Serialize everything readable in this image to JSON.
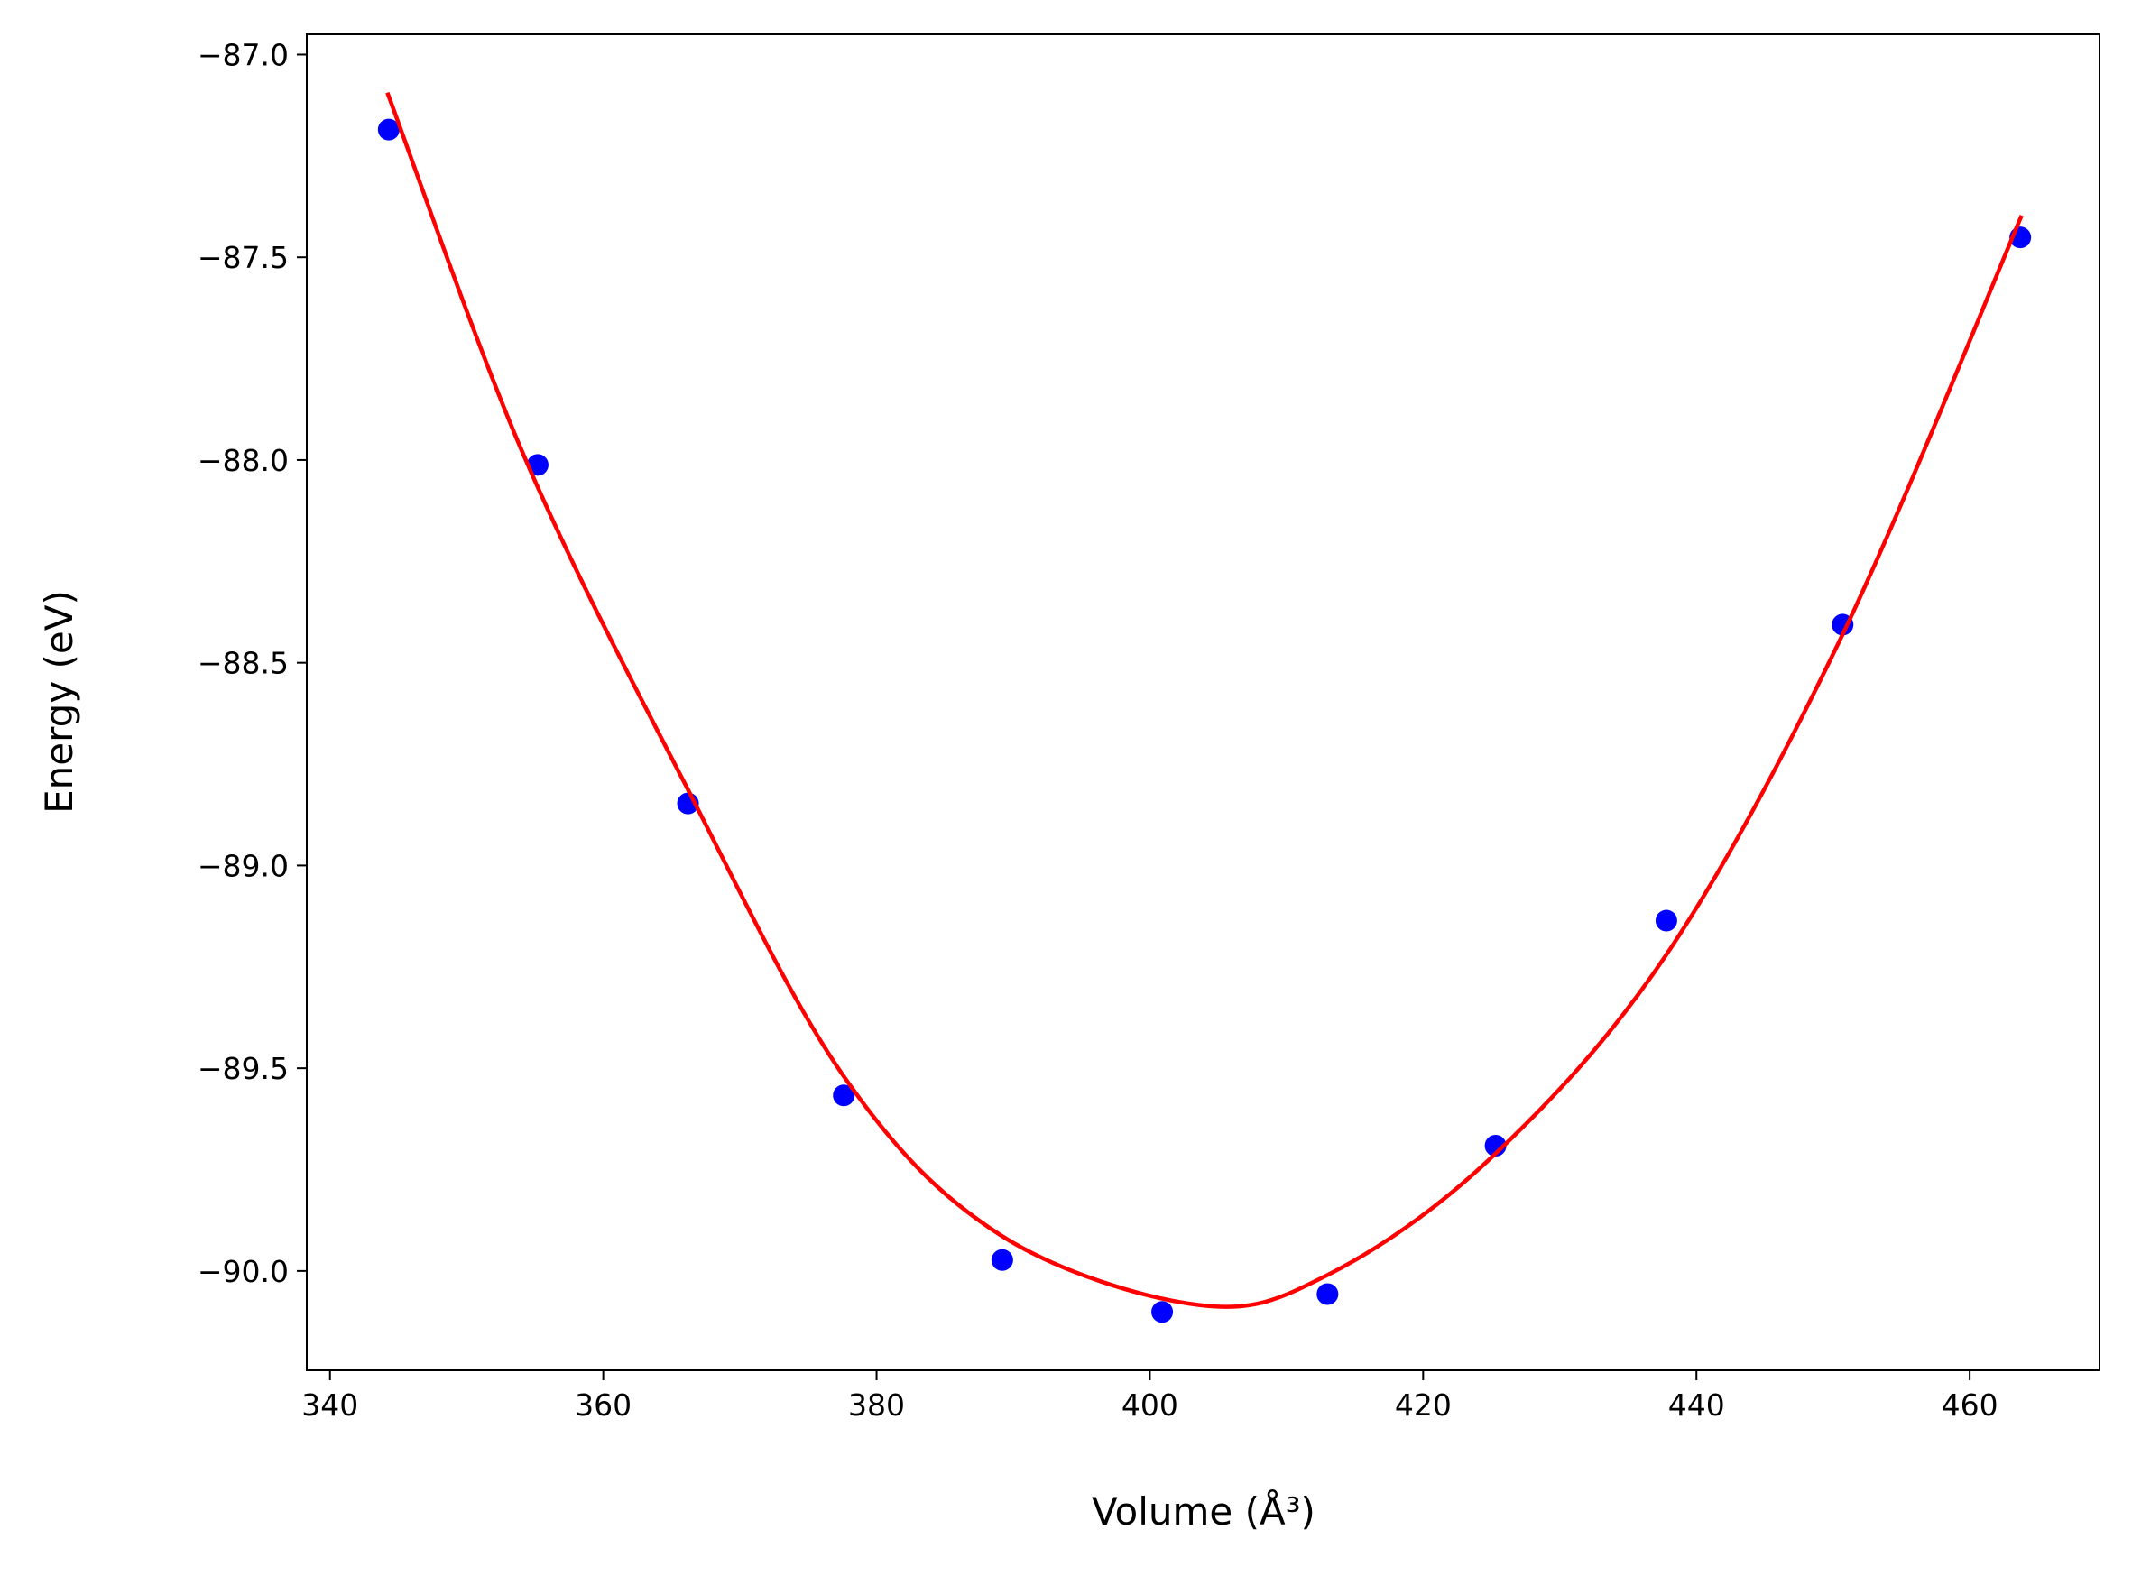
{
  "chart_data": {
    "type": "scatter",
    "xlabel": "Volume (Å³)",
    "ylabel": "Energy (eV)",
    "xlim": [
      338.3,
      469.5
    ],
    "ylim": [
      -90.245,
      -86.95
    ],
    "xticks": [
      340,
      360,
      380,
      400,
      420,
      440,
      460
    ],
    "yticks": [
      {
        "value": -87.0,
        "label": "−87.0"
      },
      {
        "value": -87.5,
        "label": "−87.5"
      },
      {
        "value": -88.0,
        "label": "−88.0"
      },
      {
        "value": -88.5,
        "label": "−88.5"
      },
      {
        "value": -89.0,
        "label": "−89.0"
      },
      {
        "value": -89.5,
        "label": "−89.5"
      },
      {
        "value": -90.0,
        "label": "−90.0"
      }
    ],
    "grid": false,
    "series": [
      {
        "type": "scatter",
        "color": "#0000ff",
        "x": [
          344.3,
          355.2,
          366.2,
          377.6,
          389.2,
          400.9,
          413.0,
          425.3,
          437.8,
          450.7,
          463.7
        ],
        "values": [
          -87.185,
          -88.012,
          -88.847,
          -89.567,
          -89.973,
          -90.101,
          -90.057,
          -89.691,
          -89.136,
          -88.406,
          -87.451
        ]
      },
      {
        "type": "line",
        "color": "#ff0000",
        "x": [
          344.2,
          354.2,
          366.0,
          377.6,
          389.0,
          403.6,
          413.0,
          425.0,
          437.8,
          450.7,
          463.8
        ],
        "values": [
          -87.094,
          -87.99,
          -88.8,
          -89.52,
          -89.91,
          -90.084,
          -90.01,
          -89.72,
          -89.22,
          -88.43,
          -87.397
        ]
      }
    ]
  }
}
